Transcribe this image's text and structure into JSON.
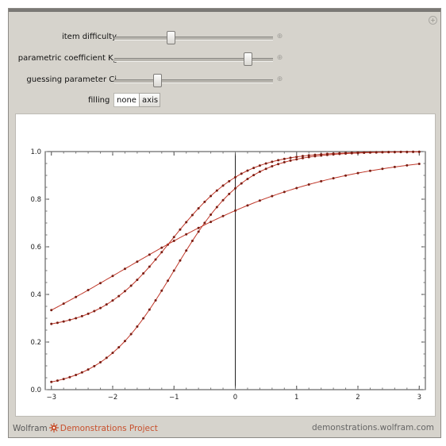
{
  "controls": {
    "item_difficulty": {
      "label": "item difficulty",
      "value": 0.35
    },
    "parametric_coefficient": {
      "label": "parametric coefficient K",
      "sub": "a",
      "value": 0.86
    },
    "guessing_parameter": {
      "label": "guessing parameter Ci",
      "value": 0.26
    }
  },
  "filling": {
    "label": "filling",
    "options": [
      "none",
      "axis"
    ],
    "selected": "none"
  },
  "chart_data": {
    "type": "line",
    "xlim": [
      -3.1,
      3.1
    ],
    "ylim": [
      0,
      1
    ],
    "x_ticks": [
      -3,
      -2,
      -1,
      0,
      1,
      2,
      3
    ],
    "y_ticks": [
      0.0,
      0.2,
      0.4,
      0.6,
      0.8,
      1.0
    ],
    "x_tick_labels": [
      "−3",
      "−2",
      "−1",
      "0",
      "1",
      "2",
      "3"
    ],
    "y_tick_labels": [
      "0.0",
      "0.2",
      "0.4",
      "0.6",
      "0.8",
      "1.0"
    ],
    "series": [
      {
        "c": 0.25,
        "a": 1.7,
        "b": -1.05,
        "points": 61,
        "color": "#c0392b"
      },
      {
        "c": 0.0,
        "a": 1.7,
        "b": -1.0,
        "points": 61,
        "color": "#c0392b"
      },
      {
        "c": 0.0,
        "a": 0.6,
        "b": -1.85,
        "points": 31,
        "color": "#c0392b"
      }
    ],
    "grid": false
  },
  "footer": {
    "brand_word": "Wolfram",
    "brand_rest": "Demonstrations Project",
    "site": "demonstrations.wolfram.com"
  },
  "colors": {
    "curve": "#c0392b",
    "panel": "#d6d3cc"
  },
  "icons": {
    "brand": "spikey-icon",
    "corner": "plus-icon"
  }
}
